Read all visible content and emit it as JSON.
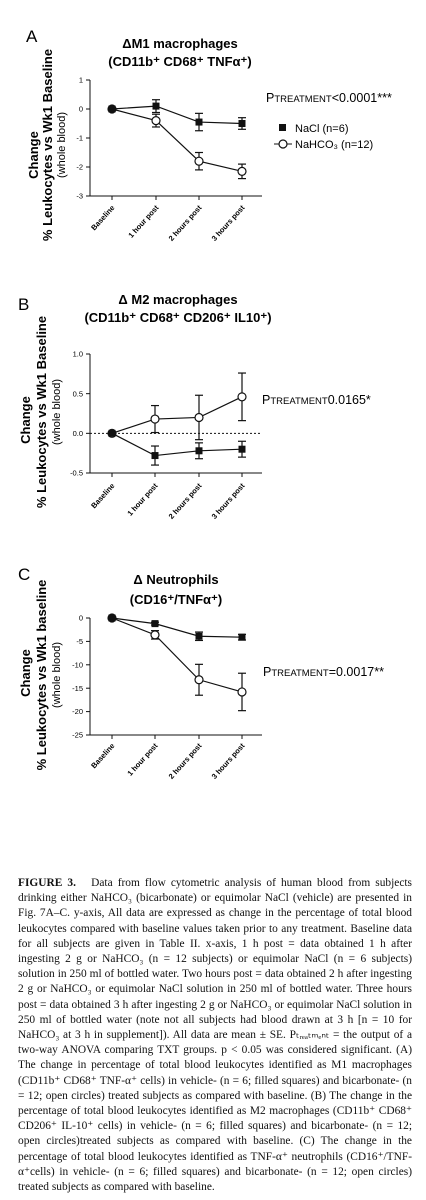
{
  "panels": [
    {
      "letter": "A",
      "title_line1": "ΔM1 macrophages",
      "title_line2": "(CD11b⁺ CD68⁺ TNFα⁺)",
      "ylabel_line1": "Change",
      "ylabel_line2": "% Leukocytes vs Wk1 Baseline",
      "ylabel_line3": "(whole blood)",
      "p_label": "P",
      "p_sub": "TREATMENT",
      "p_value": "<0.0001***",
      "legend": [
        "NaCl (n=6)",
        "NaHCO₃ (n=12)"
      ]
    },
    {
      "letter": "B",
      "title_line1": "Δ M2 macrophages",
      "title_line2": "(CD11b⁺ CD68⁺ CD206⁺ IL10⁺)",
      "ylabel_line1": "Change",
      "ylabel_line2": "% Leukocytes vs Wk1 Baseline",
      "ylabel_line3": "(whole blood)",
      "p_label": "P",
      "p_sub": "TREATMENT",
      "p_value": "0.0165*"
    },
    {
      "letter": "C",
      "title_line1": "Δ Neutrophils",
      "title_line2": "(CD16⁺/TNFα⁺)",
      "ylabel_line1": "Change",
      "ylabel_line2": "% Leukocytes vs Wk1 baseline",
      "ylabel_line3": "(whole blood)",
      "p_label": "P",
      "p_sub": "TREATMENT",
      "p_value": "=0.0017**"
    }
  ],
  "chart_data": [
    {
      "type": "line",
      "title": "ΔM1 macrophages (CD11b⁺ CD68⁺ TNFα⁺)",
      "categories": [
        "Baseline",
        "1 hour post",
        "2 hours post",
        "3 hours post"
      ],
      "ylabel": "Change % Leukocytes vs Wk1 Baseline (whole blood)",
      "ylim": [
        -3,
        1
      ],
      "yticks": [
        1,
        0,
        -1,
        -2,
        -3
      ],
      "zero_line": false,
      "series": [
        {
          "name": "NaCl (n=6)",
          "marker": "filled-square",
          "values": [
            0,
            0.1,
            -0.45,
            -0.5
          ],
          "errors": [
            0,
            0.22,
            0.3,
            0.2
          ]
        },
        {
          "name": "NaHCO₃ (n=12)",
          "marker": "open-circle",
          "values": [
            0,
            -0.4,
            -1.8,
            -2.15
          ],
          "errors": [
            0,
            0.22,
            0.3,
            0.25
          ]
        }
      ]
    },
    {
      "type": "line",
      "title": "Δ M2 macrophages (CD11b⁺ CD68⁺ CD206⁺ IL10⁺)",
      "categories": [
        "Baseline",
        "1 hour post",
        "2 hours post",
        "3 hours post"
      ],
      "ylabel": "Change % Leukocytes vs Wk1 Baseline (whole blood)",
      "ylim": [
        -0.5,
        1.0
      ],
      "yticks": [
        1.0,
        0.5,
        0.0,
        -0.5
      ],
      "ytick_labels": [
        "1.0",
        "0.5",
        "0.0",
        "-0.5"
      ],
      "zero_line": true,
      "series": [
        {
          "name": "NaCl (n=6)",
          "marker": "filled-square",
          "values": [
            0,
            -0.28,
            -0.22,
            -0.2
          ],
          "errors": [
            0,
            0.12,
            0.1,
            0.1
          ]
        },
        {
          "name": "NaHCO₃ (n=12)",
          "marker": "open-circle",
          "values": [
            0,
            0.18,
            0.2,
            0.46
          ],
          "errors": [
            0,
            0.17,
            0.28,
            0.3
          ]
        }
      ]
    },
    {
      "type": "line",
      "title": "Δ Neutrophils (CD16⁺/TNFα⁺)",
      "categories": [
        "Baseline",
        "1 hour post",
        "2 hours post",
        "3 hours post"
      ],
      "ylabel": "Change % Leukocytes vs Wk1 baseline (whole blood)",
      "ylim": [
        -25,
        0
      ],
      "yticks": [
        0,
        -5,
        -10,
        -15,
        -20,
        -25
      ],
      "zero_line": false,
      "series": [
        {
          "name": "NaCl (n=6)",
          "marker": "filled-square",
          "values": [
            0,
            -1.2,
            -3.9,
            -4.1
          ],
          "errors": [
            0,
            0.3,
            0.9,
            0.6
          ]
        },
        {
          "name": "NaHCO₃ (n=12)",
          "marker": "open-circle",
          "values": [
            0,
            -3.6,
            -13.2,
            -15.8
          ],
          "errors": [
            0,
            0.9,
            3.3,
            4.0
          ]
        }
      ]
    }
  ],
  "caption": {
    "figure_label": "FIGURE 3.",
    "text": "Data from flow cytometric analysis of human blood from subjects drinking either NaHCO₃ (bicarbonate) or equimolar NaCl (vehicle) are presented in Fig. 7A–C. y-axis, All data are expressed as change in the percentage of total blood leukocytes compared with baseline values taken prior to any treatment. Baseline data for all subjects are given in Table II. x-axis, 1 h post = data obtained 1 h after ingesting 2 g or NaHCO₃ (n = 12 subjects) or equimolar NaCl (n = 6 subjects) solution in 250 ml of bottled water. Two hours post = data obtained 2 h after ingesting 2 g or NaHCO₃ or equimolar NaCl solution in 250 ml of bottled water. Three hours post = data obtained 3 h after ingesting 2 g or NaHCO₃ or equimolar NaCl solution in 250 ml of bottled water (note not all subjects had blood drawn at 3 h [n = 10 for NaHCO₃ at 3 h in supplement]). All data are mean ± SE. Pₜᵣₑₐₜₘₑₙₜ = the output of a two-way ANOVA comparing TXT groups. p < 0.05 was considered significant. (A) The change in percentage of total blood leukocytes identified as M1 macrophages (CD11b⁺ CD68⁺ TNF-α⁺ cells) in vehicle- (n = 6; filled squares) and bicarbonate- (n = 12; open circles) treated subjects as compared with baseline. (B) The change in the percentage of total blood leukocytes identified as M2 macrophages (CD11b⁺ CD68⁺ CD206⁺ IL-10⁺ cells) in vehicle- (n = 6; filled squares) and bicarbonate- (n = 12; open circles)treated subjects as compared with baseline. (C) The change in the percentage of total blood leukocytes identified as TNF-α⁺ neutrophils (CD16⁺/TNF-α⁺cells) in vehicle- (n = 6; filled squares) and bicarbonate- (n = 12; open circles) treated subjects as compared with baseline."
  }
}
